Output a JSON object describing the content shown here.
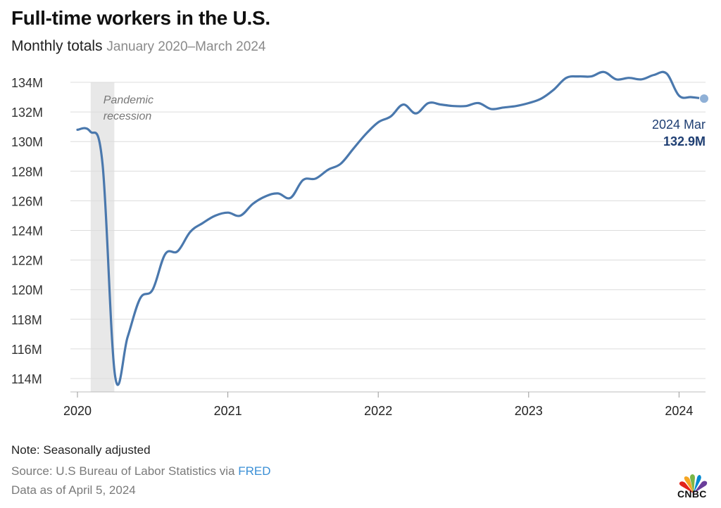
{
  "header": {
    "title": "Full-time workers in the U.S.",
    "subtitle": "Monthly totals",
    "subtitle_range": "January 2020–March 2024"
  },
  "colors": {
    "line": "#4a78ad",
    "recession_band": "#e8e8e8",
    "end_text": "#1f3f73",
    "link": "#3a8fd6"
  },
  "chart_data": {
    "type": "line",
    "title": "Full-time workers in the U.S.",
    "subtitle": "Monthly totals January 2020–March 2024",
    "xlabel": "",
    "ylabel": "",
    "x_ticks": [
      "2020",
      "2021",
      "2022",
      "2023",
      "2024"
    ],
    "y_ticks": [
      114,
      116,
      118,
      120,
      122,
      124,
      126,
      128,
      130,
      132,
      134
    ],
    "y_tick_labels": [
      "114M",
      "116M",
      "118M",
      "120M",
      "122M",
      "124M",
      "126M",
      "128M",
      "130M",
      "132M",
      "134M"
    ],
    "ylim": [
      113.5,
      135
    ],
    "grid": true,
    "units": "millions",
    "recession": {
      "label_line1": "Pandemic",
      "label_line2": "recession",
      "start_month": 1,
      "end_month": 3
    },
    "end_annotation": {
      "label": "2024 Mar",
      "value": "132.9M"
    },
    "series": [
      {
        "name": "Full-time workers",
        "months": [
          "2020-01",
          "2020-02",
          "2020-03",
          "2020-04",
          "2020-05",
          "2020-06",
          "2020-07",
          "2020-08",
          "2020-09",
          "2020-10",
          "2020-11",
          "2020-12",
          "2021-01",
          "2021-02",
          "2021-03",
          "2021-04",
          "2021-05",
          "2021-06",
          "2021-07",
          "2021-08",
          "2021-09",
          "2021-10",
          "2021-11",
          "2021-12",
          "2022-01",
          "2022-02",
          "2022-03",
          "2022-04",
          "2022-05",
          "2022-06",
          "2022-07",
          "2022-08",
          "2022-09",
          "2022-10",
          "2022-11",
          "2022-12",
          "2023-01",
          "2023-02",
          "2023-03",
          "2023-04",
          "2023-05",
          "2023-06",
          "2023-07",
          "2023-08",
          "2023-09",
          "2023-10",
          "2023-11",
          "2023-12",
          "2024-01",
          "2024-02",
          "2024-03"
        ],
        "values": [
          130.8,
          130.7,
          128.5,
          114.2,
          116.8,
          119.4,
          120.0,
          122.4,
          122.6,
          123.9,
          124.5,
          125.0,
          125.2,
          125.0,
          125.8,
          126.3,
          126.5,
          126.2,
          127.4,
          127.5,
          128.1,
          128.5,
          129.5,
          130.5,
          131.3,
          131.7,
          132.5,
          131.9,
          132.6,
          132.5,
          132.4,
          132.4,
          132.6,
          132.2,
          132.3,
          132.4,
          132.6,
          132.9,
          133.5,
          134.3,
          134.4,
          134.4,
          134.7,
          134.2,
          134.3,
          134.2,
          134.5,
          134.6,
          133.1,
          133.0,
          132.9
        ]
      }
    ]
  },
  "footer": {
    "note": "Note: Seasonally adjusted",
    "source_prefix": "Source: U.S Bureau of Labor Statistics via ",
    "source_link": "FRED",
    "as_of": "Data as of April 5, 2024"
  },
  "brand": {
    "logo_text": "CNBC"
  }
}
